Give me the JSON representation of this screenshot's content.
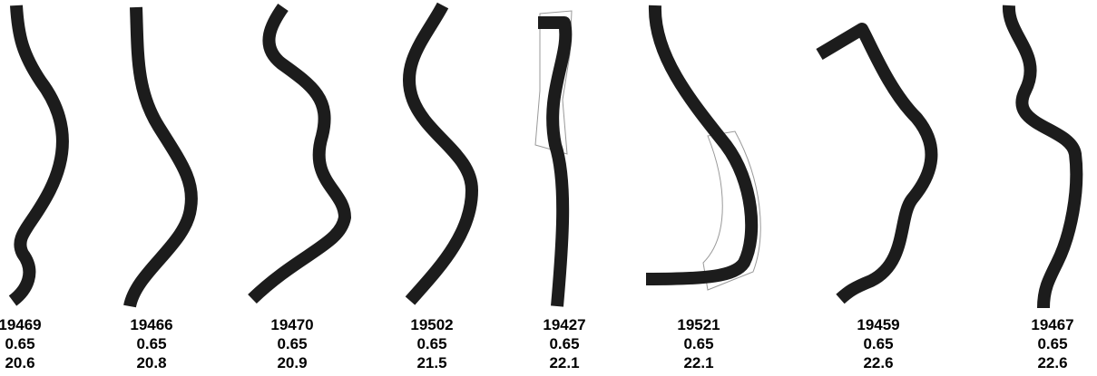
{
  "items": [
    {
      "id": "19469",
      "a": "0.65",
      "b": "20.6"
    },
    {
      "id": "19466",
      "a": "0.65",
      "b": "20.8"
    },
    {
      "id": "19470",
      "a": "0.65",
      "b": "20.9"
    },
    {
      "id": "19502",
      "a": "0.65",
      "b": "21.5"
    },
    {
      "id": "19427",
      "a": "0.65",
      "b": "22.1"
    },
    {
      "id": "19521",
      "a": "0.65",
      "b": "22.1"
    },
    {
      "id": "19459",
      "a": "0.65",
      "b": "22.6"
    },
    {
      "id": "19467",
      "a": "0.65",
      "b": "22.6"
    }
  ]
}
